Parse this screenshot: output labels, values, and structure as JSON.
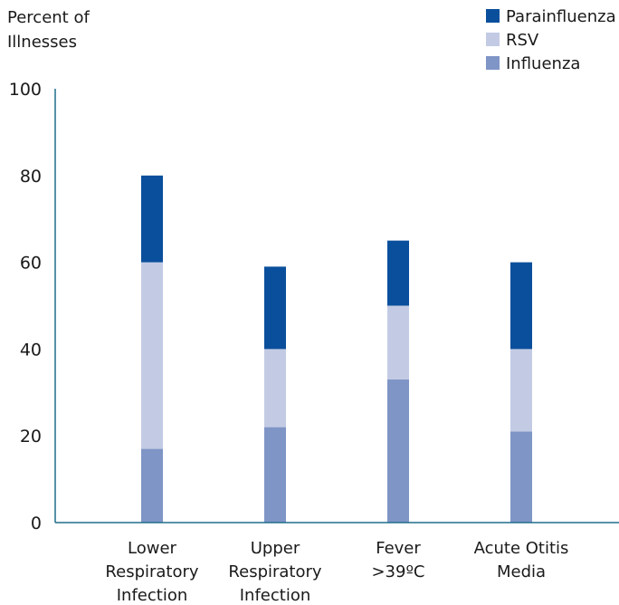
{
  "chart_data": {
    "type": "bar",
    "stacked": true,
    "ylabel_lines": [
      "Percent of",
      "Illnesses"
    ],
    "ylim": [
      0,
      100
    ],
    "yticks": [
      0,
      20,
      40,
      60,
      80,
      100
    ],
    "grid": false,
    "legend_position": "top-right",
    "categories": [
      [
        "Lower",
        "Respiratory",
        "Infection"
      ],
      [
        "Upper",
        "Respiratory",
        "Infection"
      ],
      [
        "Fever",
        ">39ºC"
      ],
      [
        "Acute Otitis",
        "Media"
      ]
    ],
    "series": [
      {
        "name": "Influenza",
        "color": "#7f95c6",
        "values": [
          17,
          22,
          33,
          21
        ]
      },
      {
        "name": "RSV",
        "color": "#c3cbe4",
        "values": [
          43,
          18,
          17,
          19
        ]
      },
      {
        "name": "Parainfluenza",
        "color": "#0a4f9c",
        "values": [
          20,
          19,
          15,
          20
        ]
      }
    ],
    "legend_order": [
      "Parainfluenza",
      "RSV",
      "Influenza"
    ],
    "axis_color": "#1e6f8c"
  }
}
